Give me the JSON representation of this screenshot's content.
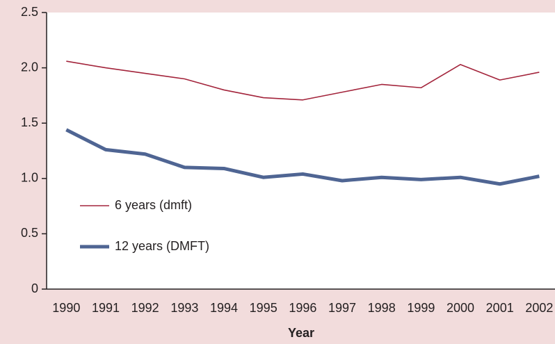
{
  "chart_data": {
    "type": "line",
    "xlabel": "Year",
    "categories": [
      "1990",
      "1991",
      "1992",
      "1993",
      "1994",
      "1995",
      "1996",
      "1997",
      "1998",
      "1999",
      "2000",
      "2001",
      "2002"
    ],
    "series": [
      {
        "name": "6 years (dmft)",
        "color": "#a3243b",
        "values": [
          2.06,
          2.0,
          1.95,
          1.9,
          1.8,
          1.73,
          1.71,
          1.78,
          1.85,
          1.82,
          2.03,
          1.89,
          1.96
        ]
      },
      {
        "name": "12 years (DMFT)",
        "color": "#4f6593",
        "values": [
          1.44,
          1.26,
          1.22,
          1.1,
          1.09,
          1.01,
          1.04,
          0.98,
          1.01,
          0.99,
          1.01,
          0.95,
          1.02
        ]
      }
    ],
    "ylim": [
      0,
      2.5
    ],
    "yticks": [
      0,
      0.5,
      {
        "value": 1,
        "label": "1.0"
      },
      1.5,
      {
        "value": 2,
        "label": "2.0"
      },
      2.5
    ]
  }
}
